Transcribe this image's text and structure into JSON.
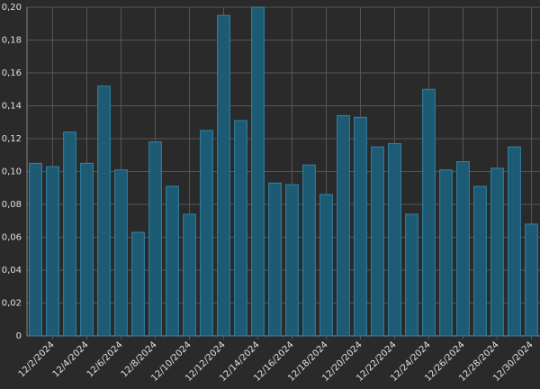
{
  "chart_data": {
    "type": "bar",
    "categories": [
      "12/2/2024",
      null,
      "12/4/2024",
      null,
      "12/6/2024",
      null,
      "12/8/2024",
      null,
      "12/10/2024",
      null,
      "12/12/2024",
      null,
      "12/14/2024",
      null,
      "12/16/2024",
      null,
      "12/18/2024",
      null,
      "12/20/2024",
      null,
      "12/22/2024",
      null,
      "12/24/2024",
      null,
      "12/26/2024",
      null,
      "12/28/2024",
      null,
      "12/30/2024",
      null
    ],
    "values": [
      0.105,
      0.103,
      0.124,
      0.105,
      0.152,
      0.101,
      0.063,
      0.118,
      0.091,
      0.074,
      0.125,
      0.195,
      0.131,
      0.2,
      0.093,
      0.092,
      0.104,
      0.086,
      0.134,
      0.133,
      0.115,
      0.117,
      0.074,
      0.15,
      0.101,
      0.106,
      0.091,
      0.102,
      0.115,
      0.068
    ],
    "color": "#1d5a74",
    "ylim": [
      0,
      0.2
    ],
    "yticks": [
      0,
      {
        "value": 0.02,
        "label": "0,02"
      },
      {
        "value": 0.04,
        "label": "0,04"
      },
      {
        "value": 0.06,
        "label": "0,06"
      },
      {
        "value": 0.08,
        "label": "0,08"
      },
      {
        "value": 0.1,
        "label": "0,10"
      },
      {
        "value": 0.12,
        "label": "0,12"
      },
      {
        "value": 0.14,
        "label": "0,14"
      },
      {
        "value": 0.16,
        "label": "0,16"
      },
      {
        "value": 0.18,
        "label": "0,18"
      },
      {
        "value": 0.2,
        "label": "0,20"
      }
    ],
    "grid": true
  }
}
